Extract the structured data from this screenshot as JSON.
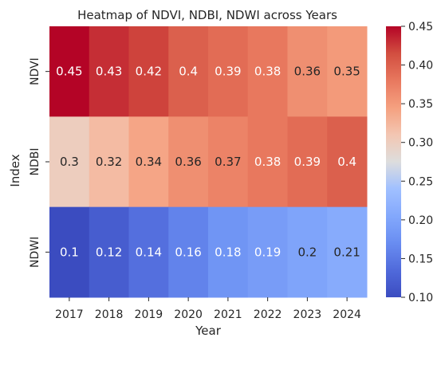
{
  "chart_data": {
    "type": "heatmap",
    "title": "Heatmap of NDVI, NDBI, NDWI across Years",
    "xlabel": "Year",
    "ylabel": "Index",
    "x": [
      "2017",
      "2018",
      "2019",
      "2020",
      "2021",
      "2022",
      "2023",
      "2024"
    ],
    "y": [
      "NDVI",
      "NDBI",
      "NDWI"
    ],
    "values": [
      [
        0.45,
        0.43,
        0.42,
        0.4,
        0.39,
        0.38,
        0.36,
        0.35
      ],
      [
        0.3,
        0.32,
        0.34,
        0.36,
        0.37,
        0.38,
        0.39,
        0.4
      ],
      [
        0.1,
        0.12,
        0.14,
        0.16,
        0.18,
        0.19,
        0.2,
        0.21
      ]
    ],
    "annotations": [
      [
        "0.45",
        "0.43",
        "0.42",
        "0.4",
        "0.39",
        "0.38",
        "0.36",
        "0.35"
      ],
      [
        "0.3",
        "0.32",
        "0.34",
        "0.36",
        "0.37",
        "0.38",
        "0.39",
        "0.4"
      ],
      [
        "0.1",
        "0.12",
        "0.14",
        "0.16",
        "0.18",
        "0.19",
        "0.2",
        "0.21"
      ]
    ],
    "colormap": "coolwarm",
    "vmin": 0.1,
    "vmax": 0.45,
    "colorbar_ticks": [
      "0.10",
      "0.15",
      "0.20",
      "0.25",
      "0.30",
      "0.35",
      "0.40",
      "0.45"
    ],
    "grid": false
  }
}
